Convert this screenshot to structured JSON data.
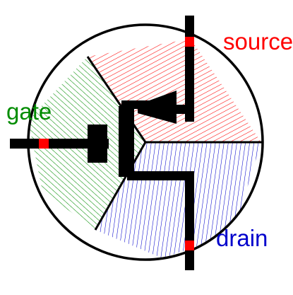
{
  "labels": {
    "source": "source",
    "gate": "gate",
    "drain": "drain"
  },
  "colors": {
    "source": "#ff0000",
    "gate": "#008c00",
    "drain": "#0000cc",
    "terminal_marker": "#ff0000",
    "outline": "#000000",
    "background": "#ffffff"
  }
}
